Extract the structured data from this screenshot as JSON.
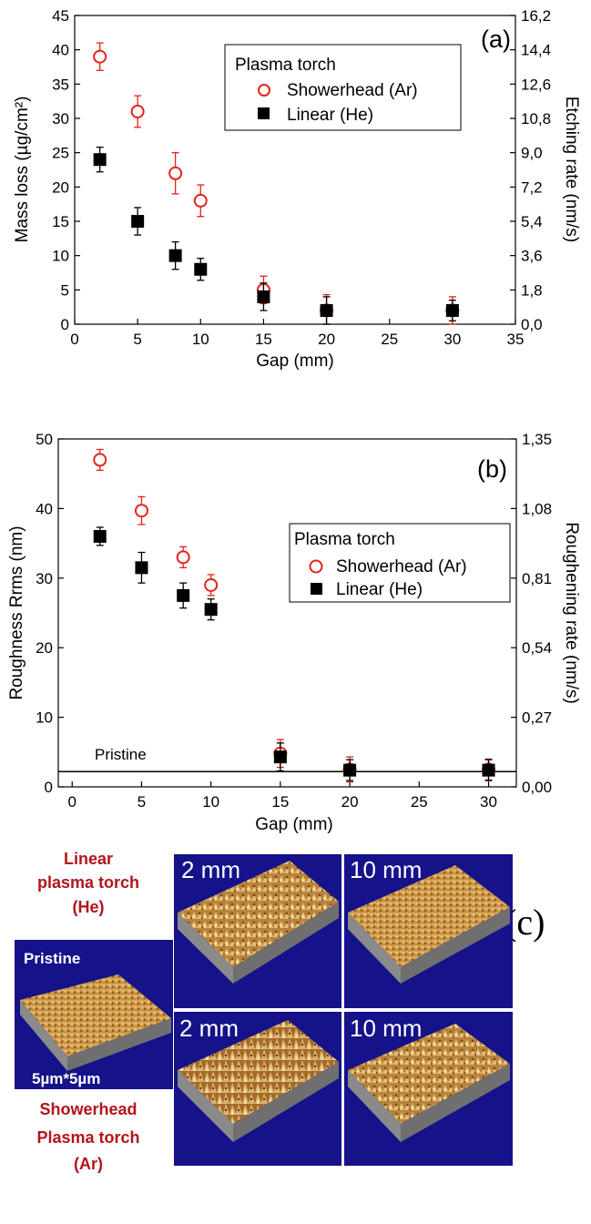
{
  "chart_data": [
    {
      "type": "scatter",
      "panel_label": "(a)",
      "xlabel": "Gap (mm)",
      "ylabel": "Mass loss (µg/cm²)",
      "y2label": "Etching rate (nm/s)",
      "xlim": [
        0,
        35
      ],
      "ylim": [
        0,
        45
      ],
      "y2lim": [
        0,
        16.2
      ],
      "xticks": [
        "0",
        "5",
        "10",
        "15",
        "20",
        "25",
        "30",
        "35"
      ],
      "yticks": [
        "0",
        "5",
        "10",
        "15",
        "20",
        "25",
        "30",
        "35",
        "40",
        "45"
      ],
      "y2ticks": [
        "0,0",
        "1,8",
        "3,6",
        "5,4",
        "7,2",
        "9,0",
        "10,8",
        "12,6",
        "14,4",
        "16,2"
      ],
      "legend": {
        "title": "Plasma torch",
        "position": "top-right"
      },
      "series": [
        {
          "name": "Showerhead (Ar)",
          "marker": "open-circle",
          "color": "#e8211b",
          "x": [
            2,
            5,
            8,
            10,
            15,
            20,
            30
          ],
          "y": [
            39,
            31,
            22,
            18,
            5,
            2,
            2
          ],
          "err": [
            2,
            2.3,
            3,
            2.3,
            2,
            2.3,
            2
          ]
        },
        {
          "name": "Linear (He)",
          "marker": "filled-square",
          "color": "#000000",
          "x": [
            2,
            5,
            8,
            10,
            15,
            20,
            30
          ],
          "y": [
            24,
            15,
            10,
            8,
            4,
            2,
            2
          ],
          "err": [
            1.8,
            2,
            2,
            1.6,
            2,
            2,
            1.5
          ]
        }
      ]
    },
    {
      "type": "scatter",
      "panel_label": "(b)",
      "xlabel": "Gap (mm)",
      "ylabel": "Roughness Rrms (nm)",
      "y2label": "Roughening rate (nm/s)",
      "xlim": [
        -1,
        32
      ],
      "ylim": [
        0,
        50
      ],
      "y2lim": [
        0,
        1.35
      ],
      "xticks": [
        "0",
        "5",
        "10",
        "15",
        "20",
        "25",
        "30"
      ],
      "yticks": [
        "0",
        "10",
        "20",
        "30",
        "40",
        "50"
      ],
      "y2ticks": [
        "0,00",
        "0,27",
        "0,54",
        "0,81",
        "1,08",
        "1,35"
      ],
      "reference_line": {
        "label": "Pristine",
        "y": 2.2
      },
      "legend": {
        "title": "Plasma torch",
        "position": "right"
      },
      "series": [
        {
          "name": "Showerhead (Ar)",
          "marker": "open-circle",
          "color": "#e8211b",
          "x": [
            2,
            5,
            8,
            10,
            15,
            20,
            30
          ],
          "y": [
            47,
            39.7,
            33,
            29,
            4.8,
            2.5,
            2.5
          ],
          "err": [
            1.5,
            2,
            1.5,
            1.5,
            2,
            1.8,
            1.5
          ]
        },
        {
          "name": "Linear (He)",
          "marker": "filled-square",
          "color": "#000000",
          "x": [
            2,
            5,
            8,
            10,
            15,
            20,
            30
          ],
          "y": [
            36,
            31.5,
            27.5,
            25.5,
            4.3,
            2.4,
            2.4
          ],
          "err": [
            1.3,
            2.2,
            1.8,
            1.5,
            2,
            1.5,
            1.5
          ]
        }
      ]
    }
  ],
  "panel_c": {
    "label": "(c)",
    "linear_caption": [
      "Linear",
      "plasma torch",
      "(He)"
    ],
    "showerhead_caption": [
      "Showerhead",
      "Plasma torch",
      "(Ar)"
    ],
    "pristine_label": "Pristine",
    "scale_label": "5µm*5µm",
    "tiles": [
      {
        "label": "2 mm",
        "group": "Linear (He)"
      },
      {
        "label": "10 mm",
        "group": "Linear (He)"
      },
      {
        "label": "2 mm",
        "group": "Showerhead (Ar)"
      },
      {
        "label": "10 mm",
        "group": "Showerhead (Ar)"
      }
    ],
    "colors": {
      "caption": "#b3141b",
      "tile_bg": "#15128a",
      "surface": "#c9913f",
      "base": "#8a8a8a"
    }
  }
}
